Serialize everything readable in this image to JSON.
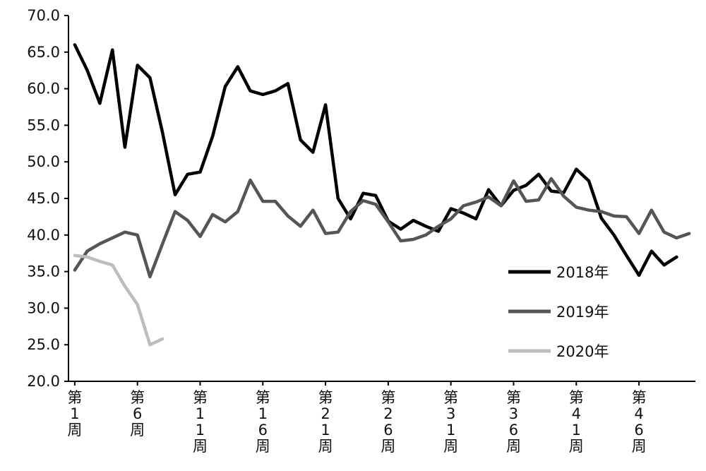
{
  "chart_data": {
    "type": "line",
    "title": "",
    "xlabel": "",
    "ylabel": "",
    "ylim": [
      20,
      70
    ],
    "yticks": [
      "20.0",
      "25.0",
      "30.0",
      "35.0",
      "40.0",
      "45.0",
      "50.0",
      "55.0",
      "60.0",
      "65.0",
      "70.0"
    ],
    "xticks": [
      {
        "x": 1,
        "label": "第1周"
      },
      {
        "x": 6,
        "label": "第6周"
      },
      {
        "x": 11,
        "label": "第11周"
      },
      {
        "x": 16,
        "label": "第16周"
      },
      {
        "x": 21,
        "label": "第21周"
      },
      {
        "x": 26,
        "label": "第26周"
      },
      {
        "x": 31,
        "label": "第31周"
      },
      {
        "x": 36,
        "label": "第36周"
      },
      {
        "x": 41,
        "label": "第41周"
      },
      {
        "x": 46,
        "label": "第46周"
      }
    ],
    "grid": false,
    "legend_position": "right",
    "series": [
      {
        "name": "2018年",
        "color": "#000000",
        "x": [
          1,
          2,
          3,
          4,
          5,
          6,
          7,
          8,
          9,
          10,
          11,
          12,
          13,
          14,
          15,
          16,
          17,
          18,
          19,
          20,
          21,
          22,
          23,
          24,
          25,
          26,
          27,
          28,
          29,
          30,
          31,
          32,
          33,
          34,
          35,
          36,
          37,
          38,
          39,
          40,
          41,
          42,
          43,
          44,
          45,
          46,
          47,
          48,
          49,
          50
        ],
        "values": [
          66.0,
          62.5,
          58.0,
          65.3,
          52.0,
          63.2,
          61.5,
          54.0,
          45.5,
          48.3,
          48.6,
          53.5,
          60.3,
          63.0,
          59.7,
          59.2,
          59.7,
          60.7,
          53.0,
          51.3,
          57.8,
          45.0,
          42.2,
          45.7,
          45.4,
          41.9,
          40.8,
          42.0,
          41.2,
          40.5,
          43.6,
          43.0,
          42.2,
          46.2,
          44.0,
          46.1,
          46.8,
          48.3,
          46.0,
          45.8,
          49.0,
          47.4,
          42.3,
          40.0,
          37.2,
          34.5,
          37.8,
          35.9,
          37.0,
          null
        ],
        "valid_points": 49
      },
      {
        "name": "2019年",
        "color": "#555555",
        "x": [
          1,
          2,
          3,
          4,
          5,
          6,
          7,
          8,
          9,
          10,
          11,
          12,
          13,
          14,
          15,
          16,
          17,
          18,
          19,
          20,
          21,
          22,
          23,
          24,
          25,
          26,
          27,
          28,
          29,
          30,
          31,
          32,
          33,
          34,
          35,
          36,
          37,
          38,
          39,
          40,
          41,
          42,
          43,
          44,
          45,
          46,
          47,
          48,
          49,
          50
        ],
        "values": [
          35.2,
          37.8,
          38.8,
          39.6,
          40.4,
          40.0,
          34.3,
          38.8,
          43.2,
          42.0,
          39.8,
          42.8,
          41.8,
          43.2,
          47.5,
          44.6,
          44.6,
          42.6,
          41.2,
          43.4,
          40.2,
          40.4,
          43.2,
          44.7,
          44.2,
          41.8,
          39.2,
          39.4,
          40.0,
          41.2,
          42.2,
          44.0,
          44.5,
          45.2,
          44.0,
          47.4,
          44.6,
          44.8,
          47.7,
          45.3,
          43.8,
          43.4,
          43.2,
          42.6,
          42.5,
          40.2,
          43.4,
          40.4,
          39.6,
          40.2
        ]
      },
      {
        "name": "2020年",
        "color": "#bdbdbd",
        "x": [
          1,
          2,
          3,
          4,
          5,
          6,
          7,
          8
        ],
        "values": [
          37.2,
          37.0,
          36.4,
          35.9,
          33.0,
          30.5,
          25.0,
          25.8
        ]
      }
    ]
  }
}
